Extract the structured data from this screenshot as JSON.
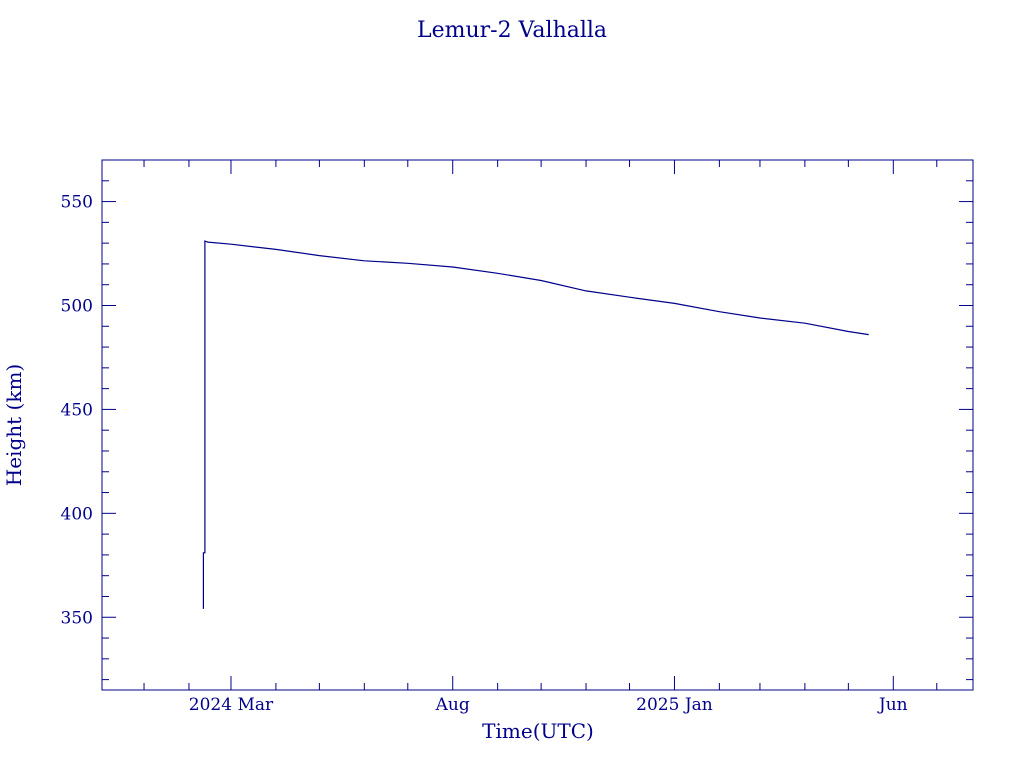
{
  "chart_data": {
    "type": "line",
    "title": "Lemur-2 Valhalla",
    "xlabel": "Time(UTC)",
    "ylabel": "Height (km)",
    "color": "#00008b",
    "ylim": [
      315,
      570
    ],
    "xlim": [
      "2023-12-03",
      "2025-07-26"
    ],
    "grid": false,
    "legend": "none",
    "y_ticks": [
      350,
      400,
      450,
      500,
      550
    ],
    "x_ticks": [
      {
        "date": "2024-03-01",
        "label": "2024 Mar"
      },
      {
        "date": "2024-08-01",
        "label": "Aug"
      },
      {
        "date": "2025-01-01",
        "label": "2025 Jan"
      },
      {
        "date": "2025-06-01",
        "label": "Jun"
      }
    ],
    "series": [
      {
        "x": [
          "2024-02-11",
          "2024-02-11",
          "2024-02-12",
          "2024-02-12",
          "2024-02-14",
          "2024-03-01",
          "2024-04-01",
          "2024-05-01",
          "2024-06-01",
          "2024-07-01",
          "2024-08-01",
          "2024-09-01",
          "2024-10-01",
          "2024-11-01",
          "2024-12-01",
          "2025-01-01",
          "2025-02-01",
          "2025-03-01",
          "2025-04-01",
          "2025-05-01",
          "2025-05-15"
        ],
        "y": [
          354,
          381,
          381,
          531,
          530.5,
          529.5,
          527,
          524,
          521.5,
          520.3,
          518.5,
          515.5,
          512,
          507,
          504,
          501,
          497,
          494,
          491.5,
          487.5,
          486
        ]
      }
    ]
  }
}
